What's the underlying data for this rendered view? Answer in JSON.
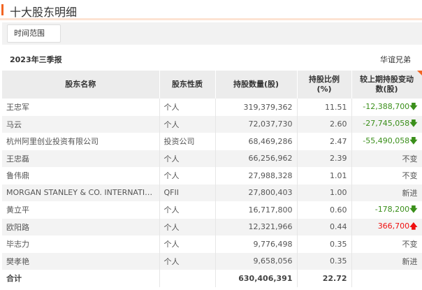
{
  "section_title": "十大股东明细",
  "filter": {
    "time_range_label": "时间范围"
  },
  "report_period": "2023年三季报",
  "source": "华谊兄弟",
  "colors": {
    "accent": "#f26522",
    "decrease": "#3a8f1a",
    "increase": "#f01010"
  },
  "table": {
    "headers": [
      "股东名称",
      "股东性质",
      "持股数量(股)",
      "持股比例(%)",
      "较上期持股变动数(股)"
    ],
    "rows": [
      {
        "name": "王忠军",
        "type": "个人",
        "shares": "319,379,362",
        "ratio": "11.51",
        "change": "-12,388,700",
        "dir": "down"
      },
      {
        "name": "马云",
        "type": "个人",
        "shares": "72,037,730",
        "ratio": "2.60",
        "change": "-27,745,058",
        "dir": "down"
      },
      {
        "name": "杭州阿里创业投资有限公司",
        "type": "投资公司",
        "shares": "68,469,286",
        "ratio": "2.47",
        "change": "-55,490,058",
        "dir": "down"
      },
      {
        "name": "王忠磊",
        "type": "个人",
        "shares": "66,256,962",
        "ratio": "2.39",
        "change": "不变",
        "dir": "none"
      },
      {
        "name": "鲁伟鼎",
        "type": "个人",
        "shares": "27,988,328",
        "ratio": "1.01",
        "change": "不变",
        "dir": "none"
      },
      {
        "name": "MORGAN STANLEY & CO. INTERNATIONAL PLC.",
        "type": "QFII",
        "shares": "27,800,403",
        "ratio": "1.00",
        "change": "新进",
        "dir": "none"
      },
      {
        "name": "黄立平",
        "type": "个人",
        "shares": "16,717,800",
        "ratio": "0.60",
        "change": "-178,200",
        "dir": "down"
      },
      {
        "name": "欧阳路",
        "type": "个人",
        "shares": "12,321,966",
        "ratio": "0.44",
        "change": "366,700",
        "dir": "up"
      },
      {
        "name": "毕志力",
        "type": "个人",
        "shares": "9,776,498",
        "ratio": "0.35",
        "change": "不变",
        "dir": "none"
      },
      {
        "name": "樊孝艳",
        "type": "个人",
        "shares": "9,658,056",
        "ratio": "0.35",
        "change": "新进",
        "dir": "none"
      }
    ],
    "total": {
      "label": "合计",
      "shares": "630,406,391",
      "ratio": "22.72"
    }
  }
}
